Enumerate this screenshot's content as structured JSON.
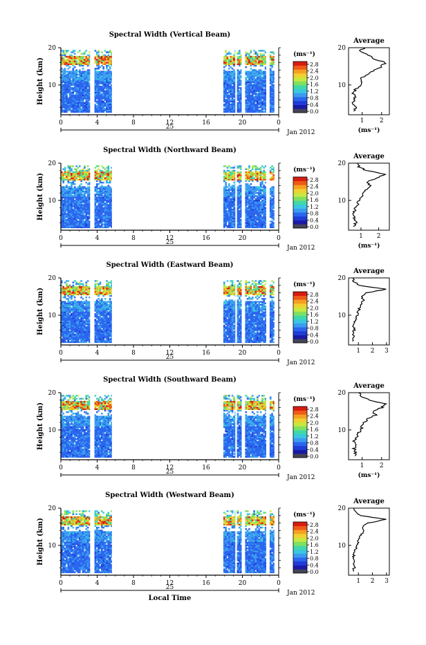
{
  "chart_data": [
    {
      "type": "heatmap",
      "title": "Spectral Width (Vertical Beam)",
      "ylabel": "Height (km)",
      "xticks": [
        "0",
        "4",
        "8",
        "12",
        "16",
        "20",
        "0"
      ],
      "yticks": [
        "20",
        "10"
      ],
      "date_label": "25",
      "month_label": "Jan 2012",
      "colorbar_unit": "(ms⁻¹)",
      "colorbar_ticks": [
        "2.8",
        "2.4",
        "2.0",
        "1.6",
        "1.2",
        "0.8",
        "0.4",
        "0.0"
      ],
      "xlim": [
        0,
        24
      ],
      "ylim": [
        2,
        20
      ],
      "data_time_ranges": [
        [
          0,
          3.2
        ],
        [
          3.7,
          5.6
        ],
        [
          17.9,
          19.2
        ],
        [
          19.4,
          19.9
        ],
        [
          20.3,
          22.6
        ],
        [
          23.0,
          23.5
        ]
      ],
      "profile": {
        "title": "Average",
        "xlabel": "(ms⁻¹)",
        "xticks": [
          "1",
          "2"
        ],
        "xlim": [
          0.3,
          2.4
        ],
        "yticks": [
          "20",
          "10"
        ],
        "heights": [
          3,
          4,
          5,
          6,
          7,
          8,
          9,
          10,
          11,
          12,
          13,
          14,
          15,
          16,
          17,
          18,
          19,
          20
        ],
        "values": [
          0.6,
          0.7,
          0.55,
          0.65,
          0.6,
          0.55,
          0.7,
          0.9,
          1.0,
          1.0,
          1.3,
          1.7,
          2.0,
          2.2,
          1.6,
          1.3,
          0.9,
          1.1
        ]
      }
    },
    {
      "type": "heatmap",
      "title": "Spectral Width (Northward Beam)",
      "ylabel": "Height (km)",
      "xticks": [
        "0",
        "4",
        "8",
        "12",
        "16",
        "20",
        "0"
      ],
      "yticks": [
        "20",
        "10"
      ],
      "date_label": "25",
      "month_label": "Jan 2012",
      "colorbar_unit": "(ms⁻¹)",
      "colorbar_ticks": [
        "2.8",
        "2.4",
        "2.0",
        "1.6",
        "1.2",
        "0.8",
        "0.4",
        "0.0"
      ],
      "xlim": [
        0,
        24
      ],
      "ylim": [
        2,
        20
      ],
      "data_time_ranges": [
        [
          0,
          3.2
        ],
        [
          3.7,
          5.6
        ],
        [
          17.9,
          19.2
        ],
        [
          19.4,
          19.9
        ],
        [
          20.3,
          22.6
        ],
        [
          23.0,
          23.5
        ]
      ],
      "profile": {
        "title": "Average",
        "xlabel": "(ms⁻¹)",
        "xticks": [
          "1",
          "2"
        ],
        "xlim": [
          0.3,
          2.6
        ],
        "yticks": [
          "20",
          "10"
        ],
        "heights": [
          3,
          4,
          5,
          6,
          7,
          8,
          9,
          10,
          11,
          12,
          13,
          14,
          15,
          16,
          17,
          18,
          19,
          20
        ],
        "values": [
          0.6,
          0.7,
          0.6,
          0.65,
          0.6,
          0.7,
          0.8,
          0.9,
          1.0,
          1.1,
          1.3,
          1.5,
          1.4,
          1.9,
          2.4,
          1.3,
          0.9,
          0.8
        ]
      }
    },
    {
      "type": "heatmap",
      "title": "Spectral Width (Eastward Beam)",
      "ylabel": "Height (km)",
      "xticks": [
        "0",
        "4",
        "8",
        "12",
        "16",
        "20",
        "0"
      ],
      "yticks": [
        "20",
        "10"
      ],
      "date_label": "25",
      "month_label": "Jan 2012",
      "colorbar_unit": "(ms⁻¹)",
      "colorbar_ticks": [
        "2.8",
        "2.4",
        "2.0",
        "1.6",
        "1.2",
        "0.8",
        "0.4",
        "0.0"
      ],
      "xlim": [
        0,
        24
      ],
      "ylim": [
        2,
        20
      ],
      "data_time_ranges": [
        [
          0,
          3.2
        ],
        [
          3.7,
          5.6
        ],
        [
          17.9,
          19.2
        ],
        [
          19.4,
          19.9
        ],
        [
          20.3,
          22.6
        ],
        [
          23.0,
          23.5
        ]
      ],
      "profile": {
        "title": "Average",
        "xlabel": "",
        "xticks": [
          "1",
          "2",
          "3"
        ],
        "xlim": [
          0.3,
          3.2
        ],
        "yticks": [
          "20",
          "10"
        ],
        "heights": [
          3,
          4,
          5,
          6,
          7,
          8,
          9,
          10,
          11,
          12,
          13,
          14,
          15,
          16,
          17,
          18,
          19,
          20
        ],
        "values": [
          0.6,
          0.7,
          0.6,
          0.7,
          0.65,
          0.7,
          0.8,
          0.9,
          1.0,
          1.1,
          1.2,
          1.4,
          1.2,
          1.6,
          3.0,
          1.0,
          0.7,
          0.6
        ]
      }
    },
    {
      "type": "heatmap",
      "title": "Spectral Width (Southward Beam)",
      "ylabel": "Height (km)",
      "xticks": [
        "0",
        "4",
        "8",
        "12",
        "16",
        "20",
        "0"
      ],
      "yticks": [
        "20",
        "10"
      ],
      "date_label": "25",
      "month_label": "Jan 2012",
      "colorbar_unit": "(ms⁻¹)",
      "colorbar_ticks": [
        "2.8",
        "2.4",
        "2.0",
        "1.6",
        "1.2",
        "0.8",
        "0.4",
        "0.0"
      ],
      "xlim": [
        0,
        24
      ],
      "ylim": [
        2,
        20
      ],
      "data_time_ranges": [
        [
          0,
          3.2
        ],
        [
          3.7,
          5.6
        ],
        [
          17.9,
          19.2
        ],
        [
          19.4,
          19.9
        ],
        [
          20.3,
          22.6
        ],
        [
          23.0,
          23.5
        ]
      ],
      "profile": {
        "title": "Average",
        "xlabel": "(ms⁻¹)",
        "xticks": [
          "1",
          "2"
        ],
        "xlim": [
          0.3,
          2.4
        ],
        "yticks": [
          "20",
          "10"
        ],
        "heights": [
          3,
          4,
          5,
          6,
          7,
          8,
          9,
          10,
          11,
          12,
          13,
          14,
          15,
          16,
          17,
          18,
          19,
          20
        ],
        "values": [
          0.6,
          0.7,
          0.6,
          0.65,
          0.6,
          0.7,
          0.8,
          0.9,
          1.0,
          1.1,
          1.3,
          1.7,
          1.5,
          2.0,
          2.2,
          1.4,
          1.0,
          0.8
        ]
      }
    },
    {
      "type": "heatmap",
      "title": "Spectral Width (Westward Beam)",
      "ylabel": "Height (km)",
      "xticks": [
        "0",
        "4",
        "8",
        "12",
        "16",
        "20",
        "0"
      ],
      "yticks": [
        "20",
        "10"
      ],
      "date_label": "25",
      "month_label": "Jan 2012",
      "xlabel": "Local Time",
      "colorbar_unit": "(ms⁻¹)",
      "colorbar_ticks": [
        "2.8",
        "2.4",
        "2.0",
        "1.6",
        "1.2",
        "0.8",
        "0.4",
        "0.0"
      ],
      "xlim": [
        0,
        24
      ],
      "ylim": [
        2,
        20
      ],
      "data_time_ranges": [
        [
          0,
          3.2
        ],
        [
          3.7,
          5.6
        ],
        [
          17.9,
          19.2
        ],
        [
          19.4,
          19.9
        ],
        [
          20.3,
          22.6
        ],
        [
          23.0,
          23.5
        ]
      ],
      "profile": {
        "title": "Average",
        "xlabel": "",
        "xticks": [
          "1",
          "2",
          "3"
        ],
        "xlim": [
          0.3,
          3.2
        ],
        "yticks": [
          "20",
          "10"
        ],
        "heights": [
          3,
          4,
          5,
          6,
          7,
          8,
          9,
          10,
          11,
          12,
          13,
          14,
          15,
          16,
          17,
          18,
          19,
          20
        ],
        "values": [
          0.6,
          0.7,
          0.6,
          0.7,
          0.65,
          0.7,
          0.8,
          0.9,
          1.0,
          1.1,
          1.2,
          1.4,
          1.3,
          1.7,
          3.0,
          1.1,
          0.8,
          0.7
        ]
      }
    }
  ],
  "colors": {
    "colormap": [
      "#1a1aa6",
      "#1e3cd8",
      "#2b66ee",
      "#3c9cf0",
      "#39c8e0",
      "#40d8a8",
      "#7fe060",
      "#c8e840",
      "#f0d030",
      "#f5a020",
      "#ee5a18",
      "#d81c10"
    ],
    "below_min": "#444455",
    "ink": "#000000"
  }
}
